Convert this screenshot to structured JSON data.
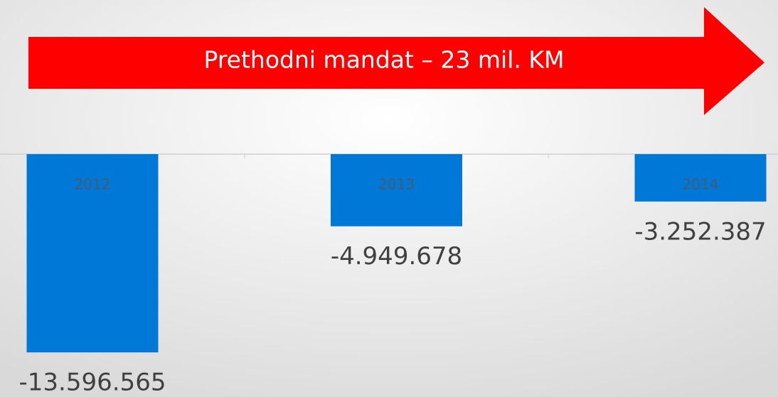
{
  "chart_data": {
    "type": "bar",
    "annotation": "Prethodni mandat – 23 mil. KM",
    "annotation_color": "#ff0000",
    "categories": [
      "2012",
      "2013",
      "2014"
    ],
    "values": [
      -13596565,
      -4949678,
      -3252387
    ],
    "value_labels": [
      "-13.596.565",
      "-4.949.678",
      "-3.252.387"
    ],
    "color": "#0078d7",
    "ylim": [
      -15000000,
      0
    ]
  }
}
